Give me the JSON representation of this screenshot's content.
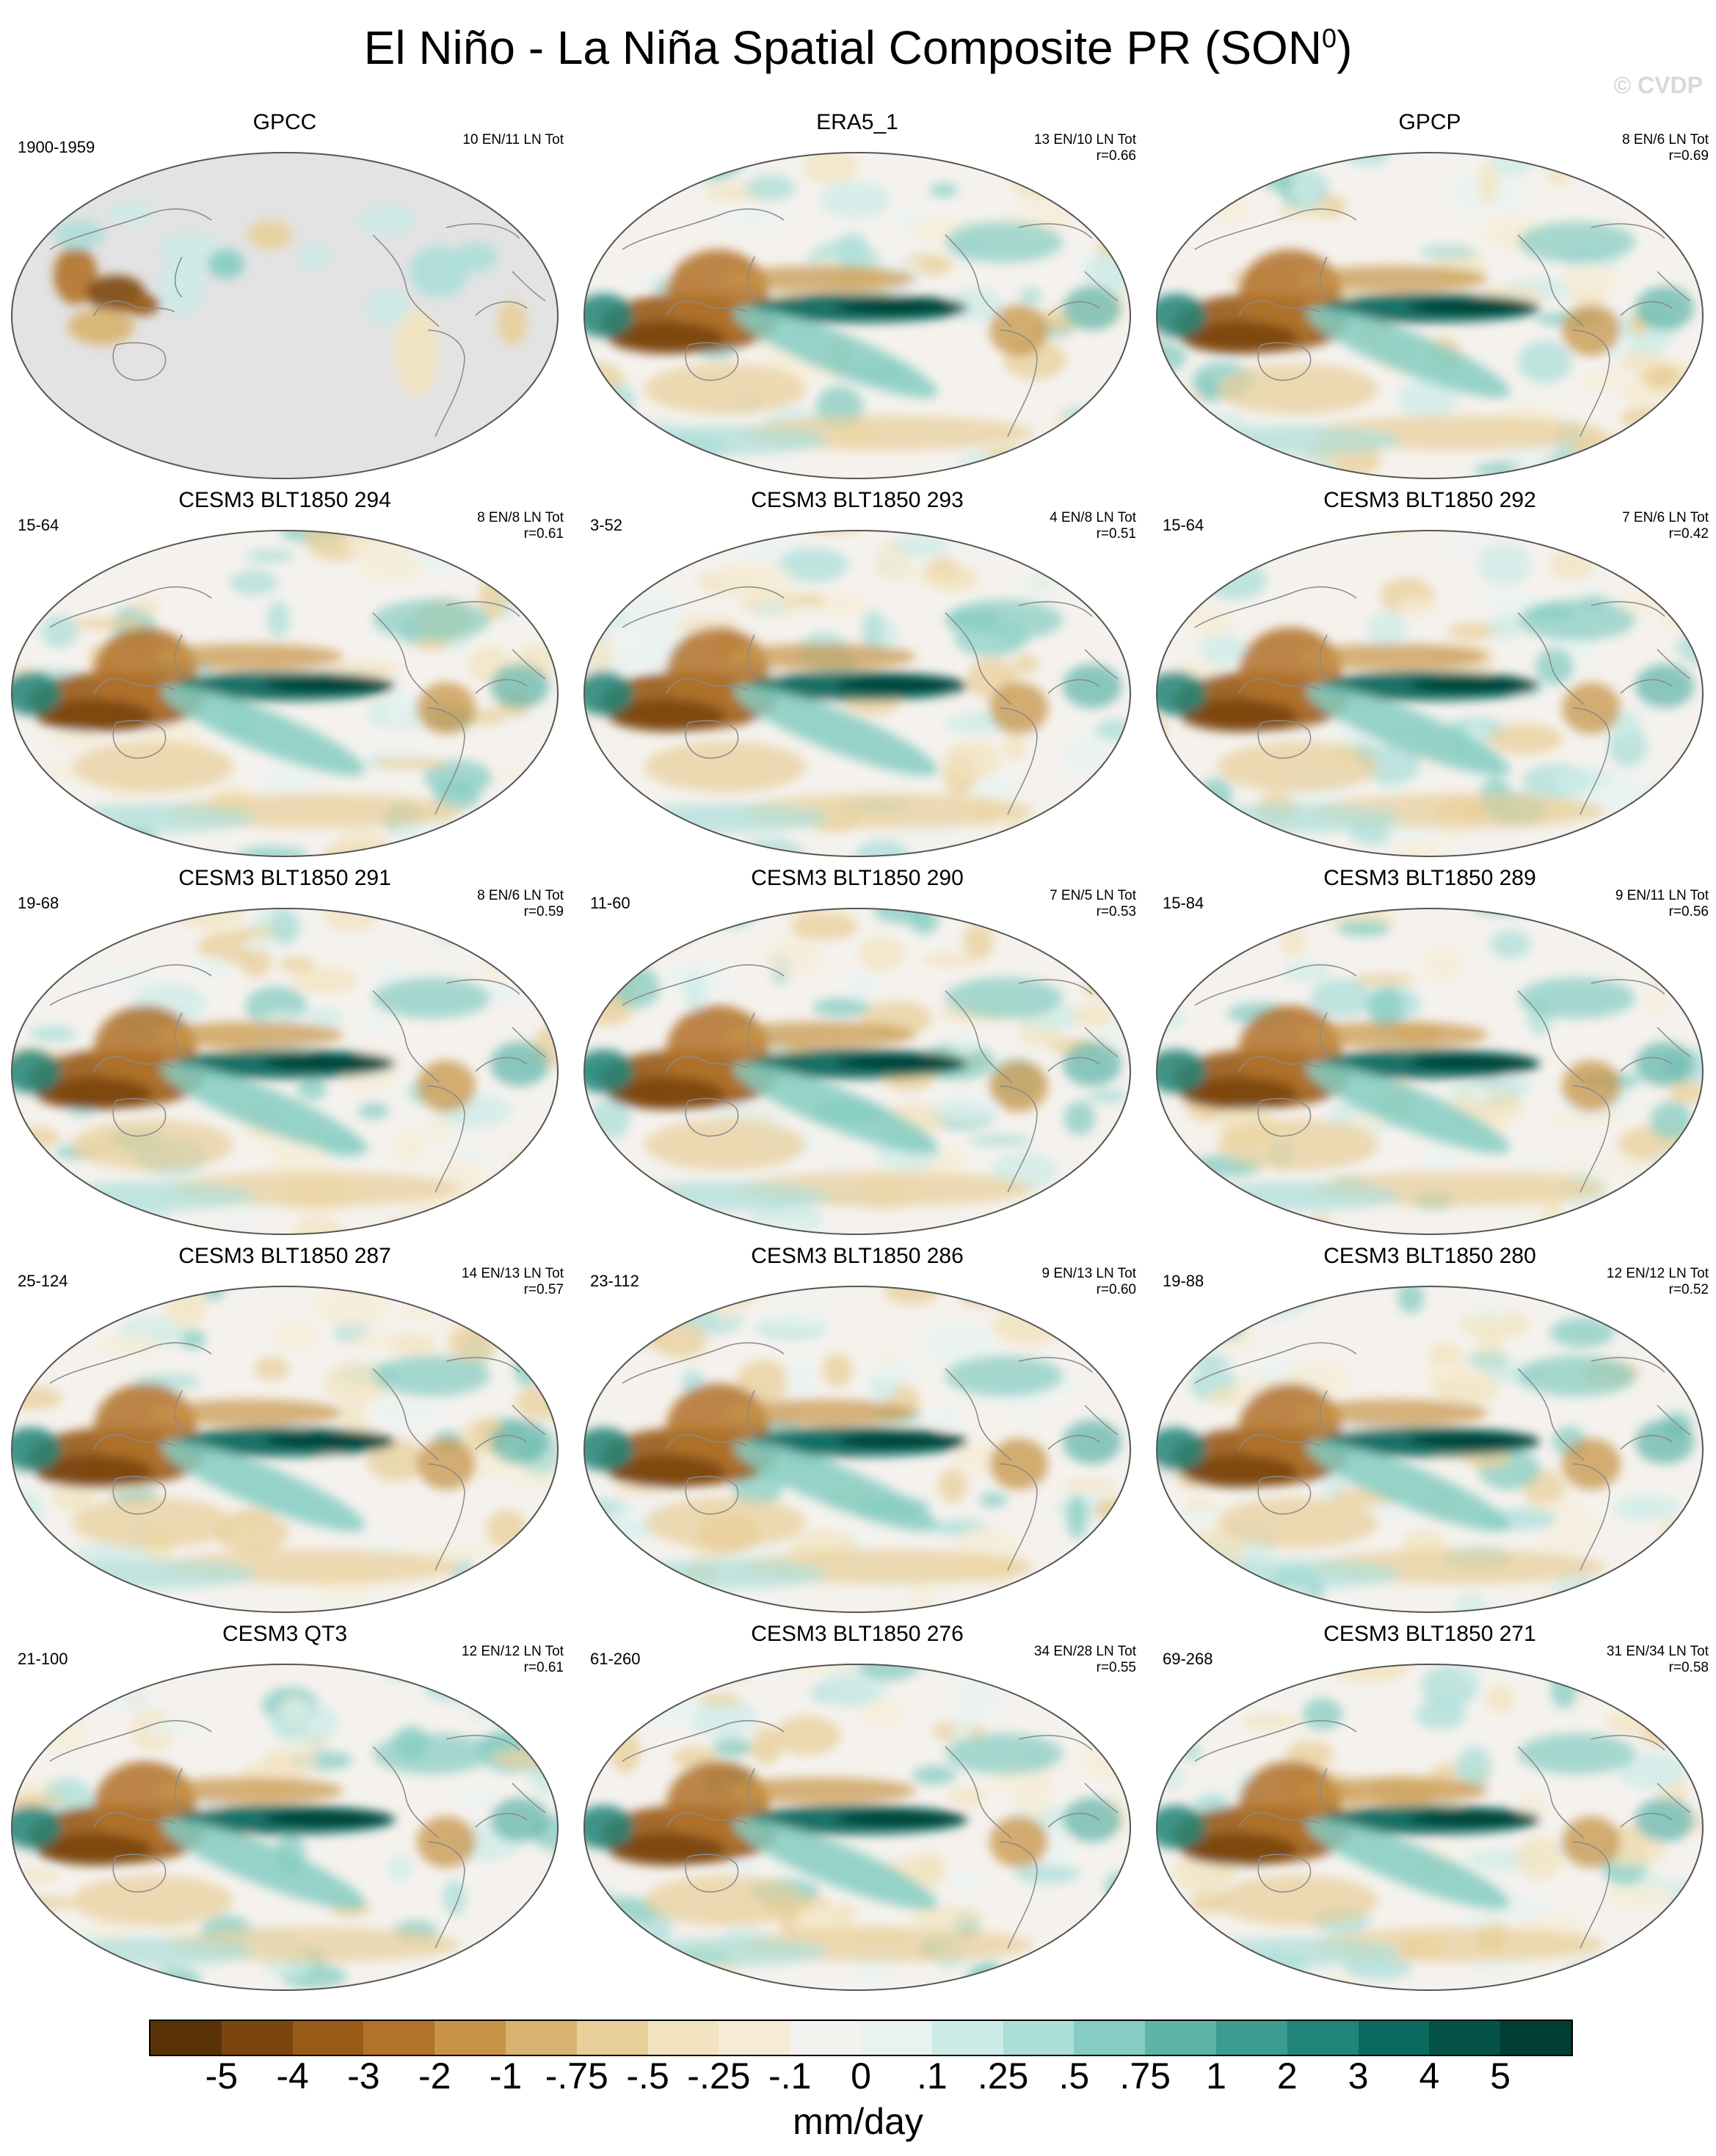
{
  "figure": {
    "title_main": "El Niño - La Niña Spatial Composite PR (SON",
    "title_sup": "0",
    "title_end": ")",
    "watermark": "© CVDP",
    "units": "mm/day"
  },
  "colors": {
    "land_missing": "#e3e3e3",
    "coast": "#8a8a8a",
    "neutral": "#f5f2ee"
  },
  "panels": [
    {
      "title": "GPCC",
      "years": "1900-1959",
      "stats1": "10 EN/11 LN Tot",
      "stats2": "",
      "pattern": "obs-land"
    },
    {
      "title": "ERA5_1",
      "years": "",
      "stats1": "13 EN/10 LN Tot",
      "stats2": "r=0.66",
      "pattern": "full"
    },
    {
      "title": "GPCP",
      "years": "",
      "stats1": "8 EN/6 LN Tot",
      "stats2": "r=0.69",
      "pattern": "full"
    },
    {
      "title": "CESM3 BLT1850 294",
      "years": "15-64",
      "stats1": "8 EN/8 LN Tot",
      "stats2": "r=0.61",
      "pattern": "full"
    },
    {
      "title": "CESM3 BLT1850 293",
      "years": "3-52",
      "stats1": "4 EN/8 LN Tot",
      "stats2": "r=0.51",
      "pattern": "full"
    },
    {
      "title": "CESM3 BLT1850 292",
      "years": "15-64",
      "stats1": "7 EN/6 LN Tot",
      "stats2": "r=0.42",
      "pattern": "full"
    },
    {
      "title": "CESM3 BLT1850 291",
      "years": "19-68",
      "stats1": "8 EN/6 LN Tot",
      "stats2": "r=0.59",
      "pattern": "full"
    },
    {
      "title": "CESM3 BLT1850 290",
      "years": "11-60",
      "stats1": "7 EN/5 LN Tot",
      "stats2": "r=0.53",
      "pattern": "full"
    },
    {
      "title": "CESM3 BLT1850 289",
      "years": "15-84",
      "stats1": "9 EN/11 LN Tot",
      "stats2": "r=0.56",
      "pattern": "full"
    },
    {
      "title": "CESM3 BLT1850 287",
      "years": "25-124",
      "stats1": "14 EN/13 LN Tot",
      "stats2": "r=0.57",
      "pattern": "full"
    },
    {
      "title": "CESM3 BLT1850 286",
      "years": "23-112",
      "stats1": "9 EN/13 LN Tot",
      "stats2": "r=0.60",
      "pattern": "full"
    },
    {
      "title": "CESM3 BLT1850 280",
      "years": "19-88",
      "stats1": "12 EN/12 LN Tot",
      "stats2": "r=0.52",
      "pattern": "full"
    },
    {
      "title": "CESM3 QT3",
      "years": "21-100",
      "stats1": "12 EN/12 LN Tot",
      "stats2": "r=0.61",
      "pattern": "full"
    },
    {
      "title": "CESM3 BLT1850 276",
      "years": "61-260",
      "stats1": "34 EN/28 LN Tot",
      "stats2": "r=0.55",
      "pattern": "full"
    },
    {
      "title": "CESM3 BLT1850 271",
      "years": "69-268",
      "stats1": "31 EN/34 LN Tot",
      "stats2": "r=0.58",
      "pattern": "full"
    }
  ],
  "colorbar": {
    "colors": [
      "#5a3208",
      "#7b4510",
      "#985a17",
      "#b1722a",
      "#c79447",
      "#d8b26f",
      "#e8cf99",
      "#f1e3bf",
      "#f6ecd6",
      "#f4f2ee",
      "#e7f3f1",
      "#cdebe7",
      "#acded8",
      "#85ccc2",
      "#5cb4a8",
      "#3b9d90",
      "#218478",
      "#0a6a5f",
      "#045248",
      "#003d34"
    ],
    "labels": [
      "-5",
      "-4",
      "-3",
      "-2",
      "-1",
      "-.75",
      "-.5",
      "-.25",
      "-.1",
      "0",
      ".1",
      ".25",
      ".5",
      ".75",
      "1",
      "2",
      "3",
      "4",
      "5"
    ]
  }
}
